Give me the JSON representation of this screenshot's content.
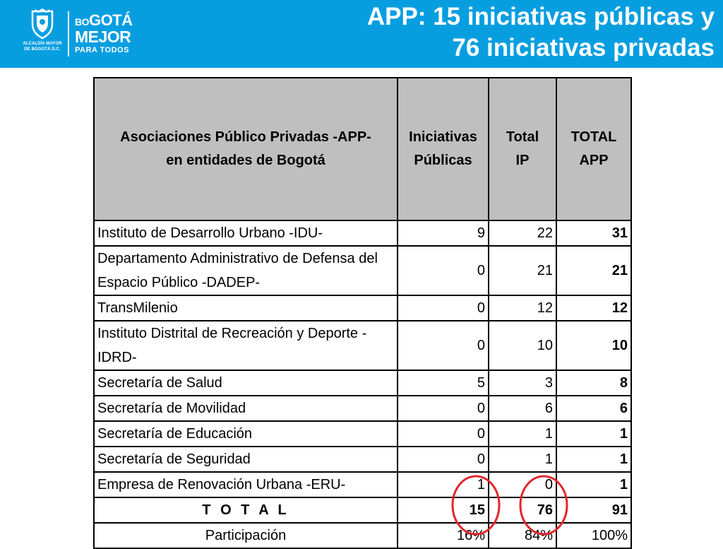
{
  "header": {
    "title": "APP: 15 iniciativas públicas y\n76 iniciativas privadas",
    "logo_caption": "ALCALDÍA MAYOR\nDE BOGOTÁ D.C.",
    "brand_line1_small": "BO",
    "brand_line1_rest": "GOTÁ",
    "brand_line2": "MEJOR",
    "brand_line3": "PARA TODOS",
    "background_color": "#079ee0"
  },
  "table": {
    "headers": [
      "Asociaciones Público Privadas -APP-\nen entidades de Bogotá",
      "Iniciativas\nPúblicas",
      "Total\nIP",
      "TOTAL\nAPP"
    ],
    "rows": [
      {
        "entity": "Instituto de Desarrollo Urbano -IDU-",
        "publicas": "9",
        "ip": "22",
        "total": "31"
      },
      {
        "entity": "Departamento Administrativo de Defensa del Espacio Público -DADEP-",
        "publicas": "0",
        "ip": "21",
        "total": "21"
      },
      {
        "entity": "TransMilenio",
        "publicas": "0",
        "ip": "12",
        "total": "12"
      },
      {
        "entity": "Instituto Distrital de Recreación y Deporte -IDRD-",
        "publicas": "0",
        "ip": "10",
        "total": "10"
      },
      {
        "entity": "Secretaría de Salud",
        "publicas": "5",
        "ip": "3",
        "total": "8"
      },
      {
        "entity": "Secretaría de Movilidad",
        "publicas": "0",
        "ip": "6",
        "total": "6"
      },
      {
        "entity": "Secretaría de Educación",
        "publicas": "0",
        "ip": "1",
        "total": "1"
      },
      {
        "entity": "Secretaría de Seguridad",
        "publicas": "0",
        "ip": "1",
        "total": "1"
      },
      {
        "entity": "Empresa de Renovación Urbana -ERU-",
        "publicas": "1",
        "ip": "0",
        "total": "1"
      }
    ],
    "total_row": {
      "label": "T O T A L",
      "publicas": "15",
      "ip": "76",
      "total": "91"
    },
    "participation_row": {
      "label": "Participación",
      "publicas": "16%",
      "ip": "84%",
      "total": "100%"
    },
    "header_background": "#bfbfbf",
    "highlight_color": "#e0262a"
  }
}
